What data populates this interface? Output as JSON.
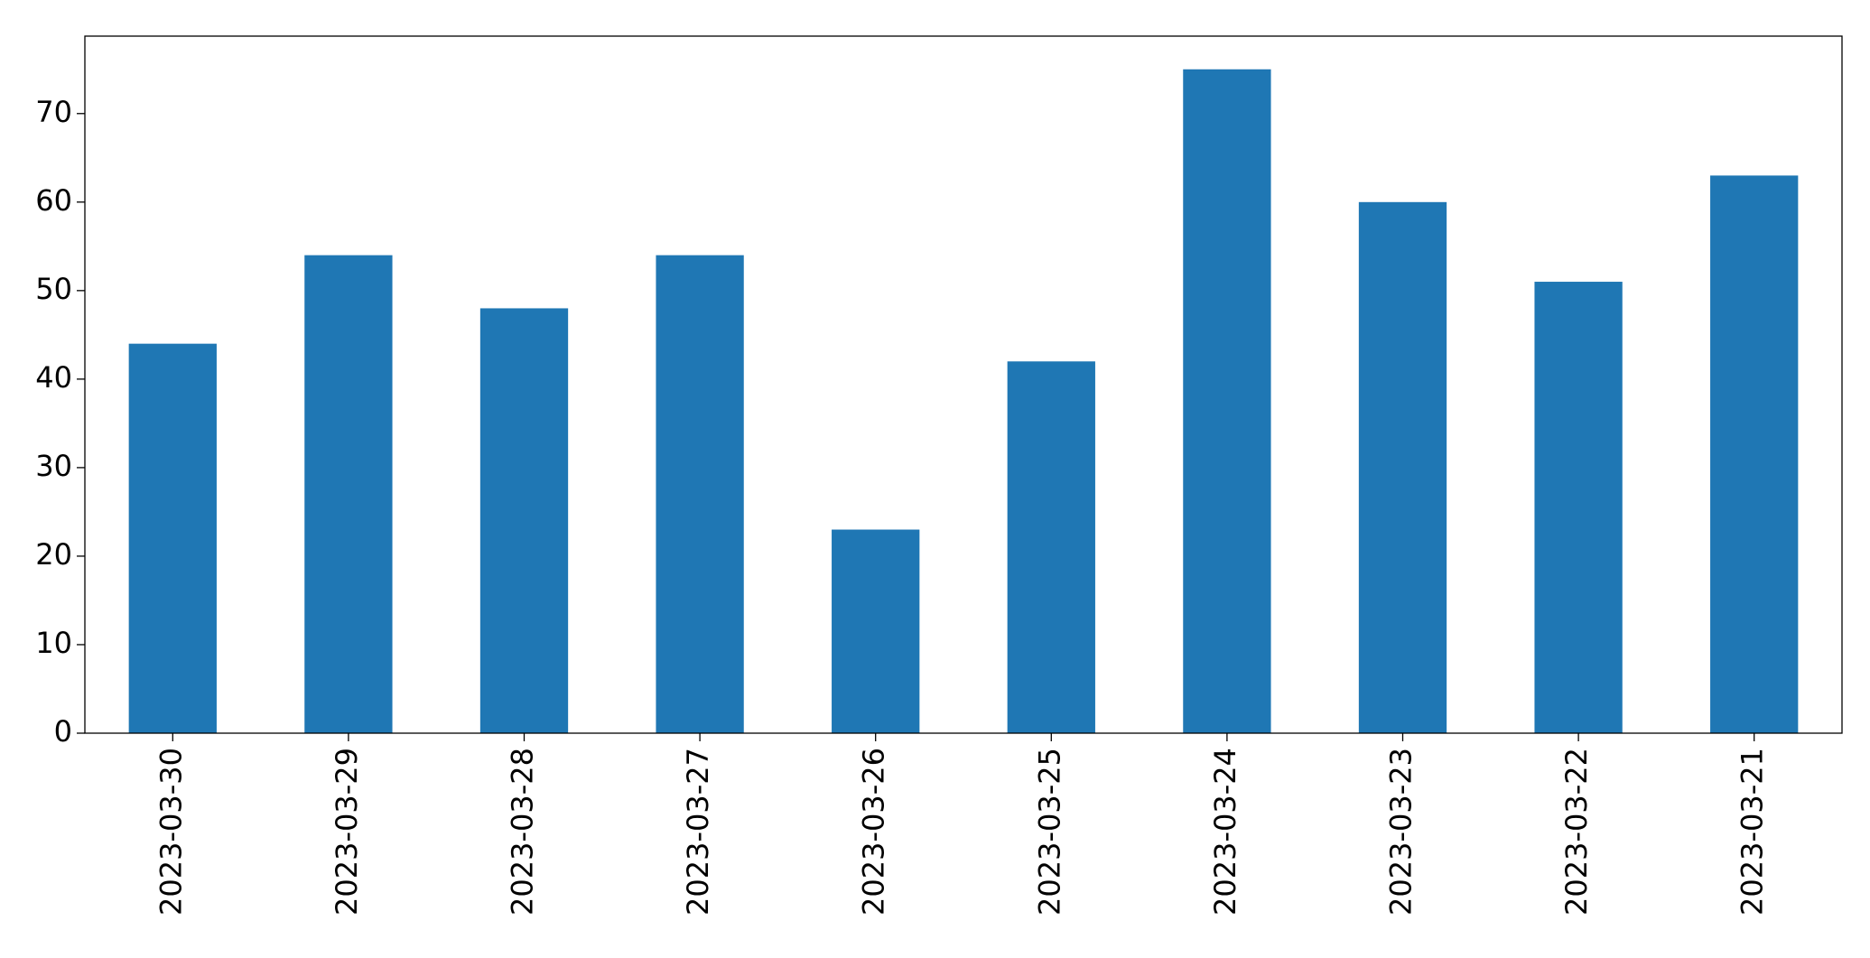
{
  "chart_data": {
    "type": "bar",
    "categories": [
      "2023-03-30",
      "2023-03-29",
      "2023-03-28",
      "2023-03-27",
      "2023-03-26",
      "2023-03-25",
      "2023-03-24",
      "2023-03-23",
      "2023-03-22",
      "2023-03-21"
    ],
    "values": [
      44,
      54,
      48,
      54,
      23,
      42,
      75,
      60,
      51,
      63
    ],
    "color": "#1f77b4",
    "ylim": [
      0,
      78.75
    ],
    "yticks": [
      0,
      10,
      20,
      30,
      40,
      50,
      60,
      70
    ],
    "grid": false
  }
}
